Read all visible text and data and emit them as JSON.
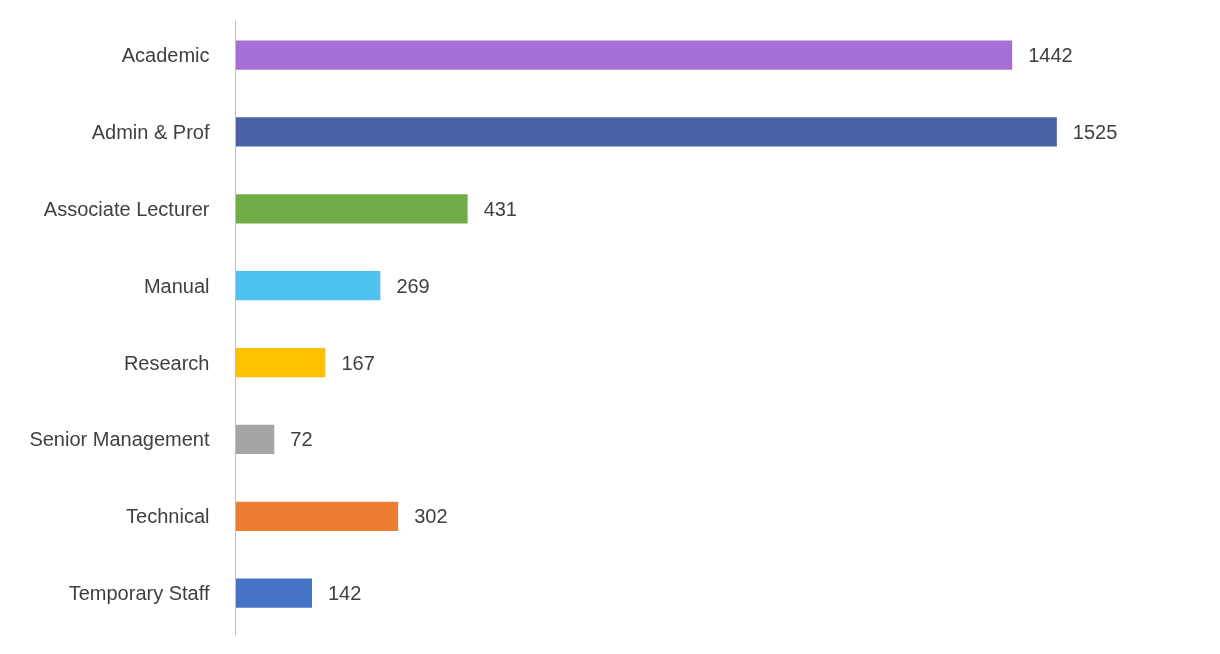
{
  "chart_data": {
    "type": "bar",
    "orientation": "horizontal",
    "categories": [
      "Academic",
      "Admin & Prof",
      "Associate Lecturer",
      "Manual",
      "Research",
      "Senior Management",
      "Technical",
      "Temporary Staff"
    ],
    "values": [
      1442,
      1525,
      431,
      269,
      167,
      72,
      302,
      142
    ],
    "colors": [
      "#a56fd6",
      "#4a62a8",
      "#70ad47",
      "#4fc3f0",
      "#ffc000",
      "#a5a5a5",
      "#ed7d31",
      "#4472c4"
    ],
    "data_labels": true
  }
}
